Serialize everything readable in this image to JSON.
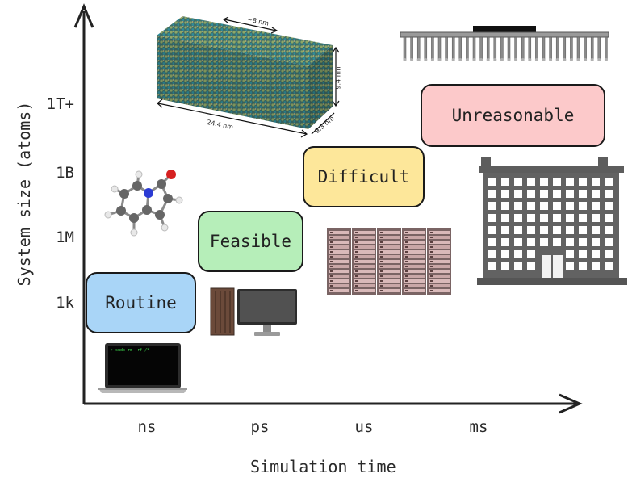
{
  "axes": {
    "y_title": "System size (atoms)",
    "x_title": "Simulation time",
    "y_ticks": [
      "1T+",
      "1B",
      "1M",
      "1k"
    ],
    "x_ticks": [
      "ns",
      "ps",
      "us",
      "ms"
    ]
  },
  "tiers": [
    {
      "label": "Routine",
      "color": "#a9d5f7"
    },
    {
      "label": "Feasible",
      "color": "#b6eeb9"
    },
    {
      "label": "Difficult",
      "color": "#fde79a"
    },
    {
      "label": "Unreasonable",
      "color": "#fcc9ca"
    }
  ],
  "crystal_dimensions": {
    "width": "24.4 nm",
    "height": "9.4 nm",
    "depth": "9.3 nm",
    "top": "~8 nm"
  },
  "terminal_text": "> sudo rm -rf /*",
  "icons": [
    "laptop-icon",
    "desktop-computer-icon",
    "server-rack-icon",
    "building-icon",
    "molecule-icon",
    "crystal-lattice-icon",
    "chip-icon"
  ]
}
